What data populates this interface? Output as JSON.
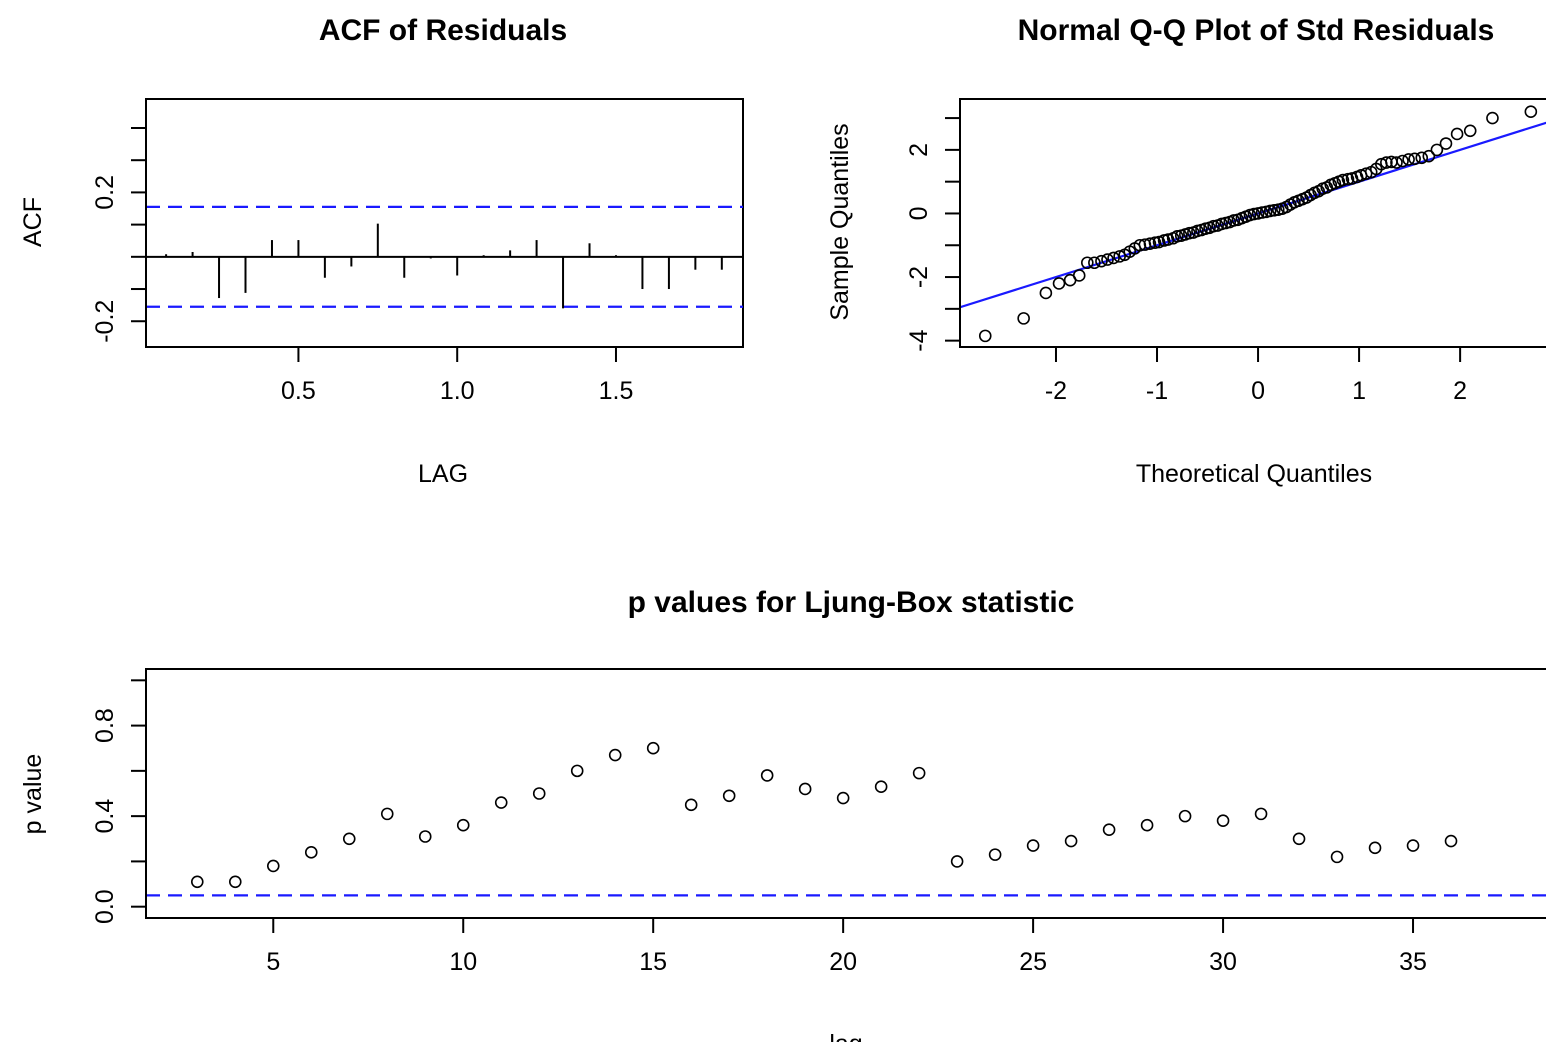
{
  "chart_data": [
    {
      "type": "bar",
      "title": "ACF of Residuals",
      "xlabel": "LAG",
      "ylabel": "ACF",
      "xlim": [
        0.02,
        1.9
      ],
      "ylim": [
        -0.28,
        0.49
      ],
      "xticks": [
        0.5,
        1.0,
        1.5
      ],
      "xtick_labels": [
        "0.5",
        "1.0",
        "1.5"
      ],
      "yticks": [
        -0.2,
        0.2
      ],
      "ytick_labels": [
        "-0.2",
        "0.2"
      ],
      "yminor": [
        -0.1,
        0.0,
        0.1,
        0.3,
        0.4
      ],
      "confidence_bound": 0.155,
      "bound_color": "#1a1aff",
      "lags": [
        0.0833,
        0.1667,
        0.25,
        0.3333,
        0.4167,
        0.5,
        0.5833,
        0.6667,
        0.75,
        0.8333,
        0.9167,
        1.0,
        1.0833,
        1.1667,
        1.25,
        1.3333,
        1.4167,
        1.5,
        1.5833,
        1.6667,
        1.75,
        1.8333
      ],
      "values": [
        0.008,
        0.015,
        -0.128,
        -0.112,
        0.052,
        0.052,
        -0.065,
        -0.03,
        0.103,
        -0.065,
        -0.005,
        -0.058,
        0.005,
        0.02,
        0.052,
        -0.16,
        0.042,
        0.005,
        -0.1,
        -0.1,
        -0.04,
        -0.04
      ]
    },
    {
      "type": "scatter",
      "title": "Normal Q-Q Plot of Std Residuals",
      "xlabel": "Theoretical Quantiles",
      "ylabel": "Sample Quantiles",
      "xlim": [
        -2.95,
        2.85
      ],
      "ylim": [
        -4.2,
        3.6
      ],
      "xticks": [
        -2,
        -1,
        0,
        1,
        2
      ],
      "xtick_labels": [
        "-2",
        "-1",
        "0",
        "1",
        "2"
      ],
      "yticks": [
        -4,
        -2,
        0,
        2
      ],
      "ytick_labels": [
        "-4",
        "-2",
        "0",
        "2"
      ],
      "yminor": [
        -3,
        -1,
        1,
        3
      ],
      "reference_line": {
        "intercept": 0.0,
        "slope": 1.0,
        "color": "#1a1aff"
      },
      "x": [
        -2.7,
        -2.32,
        -2.1,
        -1.97,
        -1.86,
        -1.77,
        -1.69,
        -1.62,
        -1.55,
        -1.49,
        -1.43,
        -1.37,
        -1.32,
        -1.27,
        -1.22,
        -1.17,
        -1.12,
        -1.07,
        -1.02,
        -0.98,
        -0.93,
        -0.89,
        -0.84,
        -0.8,
        -0.76,
        -0.72,
        -0.68,
        -0.64,
        -0.6,
        -0.56,
        -0.52,
        -0.48,
        -0.44,
        -0.4,
        -0.36,
        -0.32,
        -0.28,
        -0.24,
        -0.2,
        -0.16,
        -0.12,
        -0.08,
        -0.04,
        0.0,
        0.04,
        0.08,
        0.12,
        0.16,
        0.2,
        0.24,
        0.28,
        0.32,
        0.36,
        0.4,
        0.44,
        0.48,
        0.52,
        0.56,
        0.6,
        0.64,
        0.68,
        0.72,
        0.76,
        0.8,
        0.84,
        0.89,
        0.93,
        0.98,
        1.02,
        1.07,
        1.12,
        1.17,
        1.22,
        1.27,
        1.32,
        1.37,
        1.43,
        1.49,
        1.55,
        1.62,
        1.69,
        1.77,
        1.86,
        1.97,
        2.1,
        2.32,
        2.7
      ],
      "y": [
        -3.85,
        -3.3,
        -2.5,
        -2.2,
        -2.1,
        -1.95,
        -1.55,
        -1.55,
        -1.5,
        -1.45,
        -1.4,
        -1.35,
        -1.3,
        -1.2,
        -1.1,
        -1.0,
        -0.98,
        -0.95,
        -0.92,
        -0.9,
        -0.85,
        -0.82,
        -0.78,
        -0.72,
        -0.7,
        -0.66,
        -0.62,
        -0.6,
        -0.55,
        -0.52,
        -0.48,
        -0.45,
        -0.4,
        -0.38,
        -0.33,
        -0.3,
        -0.27,
        -0.22,
        -0.2,
        -0.15,
        -0.1,
        -0.05,
        -0.02,
        0.0,
        0.03,
        0.05,
        0.08,
        0.1,
        0.12,
        0.15,
        0.2,
        0.28,
        0.35,
        0.4,
        0.45,
        0.5,
        0.58,
        0.65,
        0.7,
        0.78,
        0.82,
        0.9,
        0.95,
        1.0,
        1.05,
        1.08,
        1.1,
        1.15,
        1.2,
        1.25,
        1.3,
        1.4,
        1.55,
        1.6,
        1.62,
        1.6,
        1.65,
        1.7,
        1.72,
        1.75,
        1.8,
        2.0,
        2.2,
        2.5,
        2.6,
        3.0,
        3.2
      ]
    },
    {
      "type": "scatter",
      "title": "p values for Ljung-Box statistic",
      "xlabel": "lag",
      "ylabel": "p value",
      "xlim": [
        1.65,
        38.5
      ],
      "ylim": [
        -0.05,
        1.05
      ],
      "xticks": [
        5,
        10,
        15,
        20,
        25,
        30,
        35
      ],
      "xtick_labels": [
        "5",
        "10",
        "15",
        "20",
        "25",
        "30",
        "35"
      ],
      "yticks": [
        0.0,
        0.4,
        0.8
      ],
      "ytick_labels": [
        "0.0",
        "0.4",
        "0.8"
      ],
      "yminor": [
        0.2,
        0.6,
        1.0
      ],
      "significance_line": 0.05,
      "line_color": "#1a1aff",
      "x": [
        3,
        4,
        5,
        6,
        7,
        8,
        9,
        10,
        11,
        12,
        13,
        14,
        15,
        16,
        17,
        18,
        19,
        20,
        21,
        22,
        23,
        24,
        25,
        26,
        27,
        28,
        29,
        30,
        31,
        32,
        33,
        34,
        35,
        36
      ],
      "y": [
        0.11,
        0.11,
        0.18,
        0.24,
        0.3,
        0.41,
        0.31,
        0.36,
        0.46,
        0.5,
        0.6,
        0.67,
        0.7,
        0.45,
        0.49,
        0.58,
        0.52,
        0.48,
        0.53,
        0.59,
        0.2,
        0.23,
        0.27,
        0.29,
        0.34,
        0.36,
        0.4,
        0.38,
        0.41,
        0.3,
        0.22,
        0.26,
        0.27,
        0.29
      ]
    }
  ]
}
